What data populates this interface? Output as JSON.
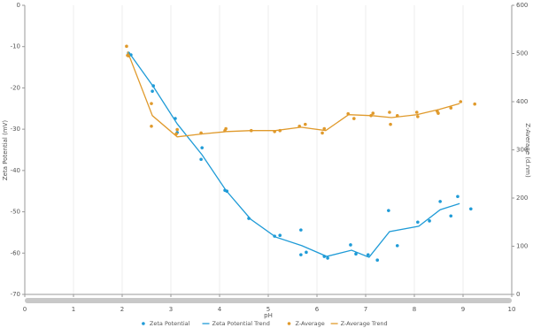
{
  "chart_data": {
    "type": "combo",
    "xlabel": "pH",
    "ylabel": "Zeta Potential (mV)",
    "y2label": "Z-Average (d.nm)",
    "xlim": [
      0,
      10
    ],
    "xticks": [
      0,
      1,
      2,
      3,
      4,
      5,
      6,
      7,
      8,
      9,
      10
    ],
    "ylim": [
      -70,
      0
    ],
    "yticks": [
      -70,
      -60,
      -50,
      -40,
      -30,
      -20,
      -10,
      0
    ],
    "y2lim": [
      0,
      600
    ],
    "y2ticks": [
      0,
      100,
      200,
      300,
      400,
      500,
      600
    ],
    "grid": "x",
    "legend": "bottom",
    "series": [
      {
        "name": "Zeta Potential",
        "type": "scatter",
        "axis": "y",
        "color": "#1f9bd7",
        "x": [
          2.13,
          2.18,
          2.64,
          2.62,
          3.09,
          3.13,
          3.64,
          3.62,
          4.11,
          4.15,
          4.6,
          5.13,
          5.24,
          5.67,
          5.67,
          5.78,
          6.15,
          6.22,
          6.69,
          6.8,
          7.05,
          7.24,
          7.47,
          7.65,
          8.07,
          8.31,
          8.53,
          8.75,
          8.89,
          9.16
        ],
        "values": [
          -11.6,
          -12,
          -19.5,
          -20.8,
          -27.4,
          -30.8,
          -34.5,
          -37.3,
          -44.8,
          -45,
          -51.6,
          -55.9,
          -55.7,
          -54.4,
          -60.4,
          -59.8,
          -60.8,
          -61.2,
          -58,
          -60.2,
          -60.4,
          -61.7,
          -49.7,
          -58.2,
          -52.5,
          -52.2,
          -47.5,
          -51,
          -46.3,
          -49.3
        ]
      },
      {
        "name": "Zeta Potential Trend",
        "type": "line",
        "axis": "y",
        "color": "#1f9bd7",
        "x": [
          2.13,
          2.64,
          3.13,
          3.64,
          4.13,
          4.64,
          5.15,
          5.69,
          6.2,
          6.71,
          7.07,
          7.49,
          8.09,
          8.53,
          8.93
        ],
        "values": [
          -11.3,
          -19.7,
          -28.7,
          -36.2,
          -44.8,
          -51.8,
          -56.1,
          -58.2,
          -60.8,
          -59.3,
          -61,
          -54.8,
          -53.5,
          -49.5,
          -48
        ]
      },
      {
        "name": "Z-Average",
        "type": "scatter",
        "axis": "y2",
        "color": "#e09a2c",
        "x": [
          2.09,
          2.11,
          2.13,
          2.6,
          2.6,
          3.11,
          3.13,
          3.62,
          4.11,
          4.13,
          4.65,
          5.13,
          5.24,
          5.64,
          5.76,
          6.15,
          6.11,
          6.64,
          6.76,
          7.11,
          7.15,
          7.49,
          7.51,
          7.65,
          8.05,
          8.07,
          8.47,
          8.49,
          8.75,
          8.95,
          9.24
        ],
        "values": [
          515,
          496,
          495,
          396,
          349,
          333,
          342,
          335,
          340,
          344,
          340,
          338,
          340,
          349,
          353,
          344,
          335,
          375,
          365,
          371,
          376,
          378,
          353,
          371,
          378,
          369,
          380,
          376,
          387,
          400,
          395
        ]
      },
      {
        "name": "Z-Average Trend",
        "type": "line",
        "axis": "y2",
        "color": "#e09a2c",
        "x": [
          2.11,
          2.62,
          3.13,
          3.64,
          4.15,
          4.65,
          5.15,
          5.67,
          6.18,
          6.65,
          7.13,
          7.53,
          8.05,
          8.51,
          8.93
        ],
        "values": [
          504,
          371,
          327,
          333,
          338,
          340,
          340,
          347,
          340,
          373,
          371,
          367,
          373,
          384,
          396
        ]
      }
    ]
  }
}
